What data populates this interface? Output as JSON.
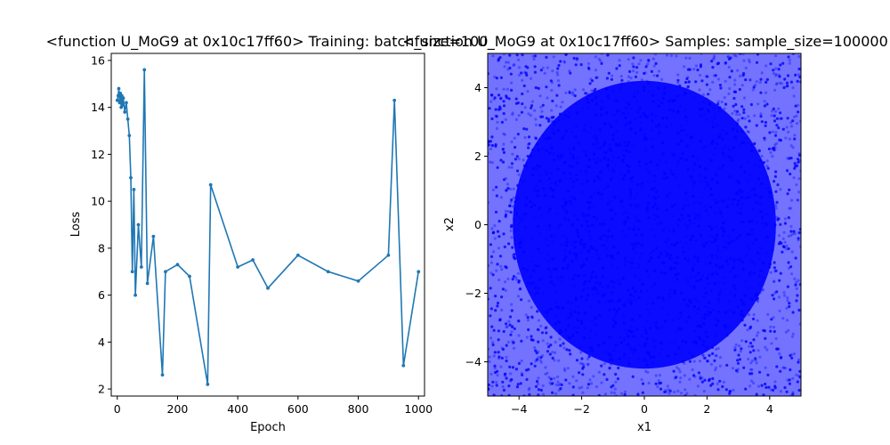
{
  "chart_data": [
    {
      "type": "line",
      "title": "<function U_MoG9 at 0x10c17ff60> Training: batch_size=100",
      "xlabel": "Epoch",
      "ylabel": "Loss",
      "xlim": [
        -20,
        1020
      ],
      "ylim": [
        1.7,
        16.3
      ],
      "xticks": [
        0,
        200,
        400,
        600,
        800,
        1000
      ],
      "yticks": [
        2,
        4,
        6,
        8,
        10,
        12,
        14,
        16
      ],
      "color": "#1f77b4",
      "marker": "circle",
      "grid": false,
      "series": [
        {
          "x": [
            0,
            3,
            5,
            8,
            10,
            13,
            15,
            18,
            20,
            25,
            30,
            35,
            40,
            45,
            50,
            55,
            60,
            70,
            80,
            90,
            100,
            120,
            150,
            160,
            200,
            240,
            300,
            310,
            400,
            450,
            500,
            600,
            700,
            800,
            900,
            920,
            950,
            1000
          ],
          "y": [
            14.3,
            14.5,
            14.8,
            14.2,
            14.6,
            14.0,
            14.5,
            14.1,
            14.4,
            13.8,
            14.2,
            13.5,
            12.8,
            11.0,
            7.0,
            10.5,
            6.0,
            9.0,
            7.2,
            15.6,
            6.5,
            8.5,
            2.6,
            7.0,
            7.3,
            6.8,
            2.2,
            10.7,
            7.2,
            7.5,
            6.3,
            7.7,
            7.0,
            6.6,
            7.7,
            14.3,
            3.0,
            7.0
          ]
        }
      ]
    },
    {
      "type": "scatter",
      "title": "<function U_MoG9 at 0x10c17ff60> Samples: sample_size=100000",
      "xlabel": "x1",
      "ylabel": "x2",
      "xlim": [
        -5,
        5
      ],
      "ylim": [
        -5,
        5
      ],
      "xticks": [
        -4,
        -2,
        0,
        2,
        4
      ],
      "yticks": [
        -4,
        -2,
        0,
        2,
        4
      ],
      "color": "#0000ff",
      "distribution": "dense cloud of points covering the whole square, darkest near the center",
      "grid": false
    }
  ]
}
